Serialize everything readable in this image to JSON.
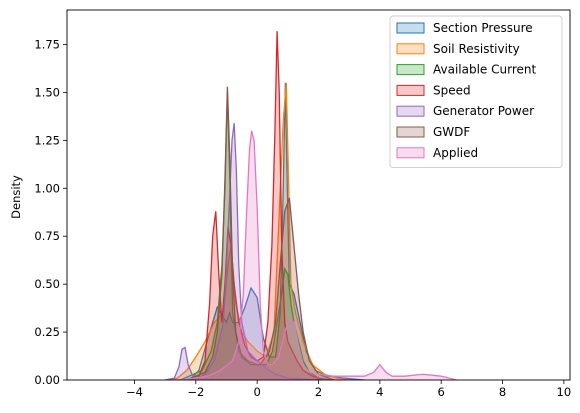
{
  "chart_data": {
    "type": "area",
    "title": "",
    "xlabel": "",
    "ylabel": "Density",
    "xlim": [
      -6.2,
      10.2
    ],
    "ylim": [
      0,
      1.93
    ],
    "xticks": [
      -4,
      -2,
      0,
      2,
      4,
      6,
      8,
      10
    ],
    "xtick_labels": [
      "−4",
      "−2",
      "0",
      "2",
      "4",
      "6",
      "8",
      "10"
    ],
    "yticks": [
      0.0,
      0.25,
      0.5,
      0.75,
      1.0,
      1.25,
      1.5,
      1.75
    ],
    "ytick_labels": [
      "0.00",
      "0.25",
      "0.50",
      "0.75",
      "1.00",
      "1.25",
      "1.50",
      "1.75"
    ],
    "grid": false,
    "legend_position": "top-right",
    "series": [
      {
        "name": "Section Pressure",
        "color": "#1f77b4",
        "x": [
          -3.0,
          -2.2,
          -1.9,
          -1.6,
          -1.3,
          -1.0,
          -0.9,
          -0.8,
          -0.6,
          -0.4,
          -0.2,
          0.0,
          0.2,
          0.4,
          0.6,
          0.75,
          0.85,
          0.92,
          0.97,
          1.05,
          1.2,
          1.4,
          1.6,
          1.9,
          2.3,
          2.8,
          3.5
        ],
        "y": [
          0.0,
          0.0,
          0.05,
          0.22,
          0.38,
          0.3,
          0.35,
          0.3,
          0.3,
          0.38,
          0.48,
          0.43,
          0.22,
          0.12,
          0.12,
          0.35,
          1.0,
          1.55,
          1.1,
          0.5,
          0.45,
          0.3,
          0.15,
          0.05,
          0.02,
          0.01,
          0.0
        ]
      },
      {
        "name": "Soil Resistivity",
        "color": "#ff7f0e",
        "x": [
          -3.0,
          -2.6,
          -2.3,
          -2.0,
          -1.7,
          -1.4,
          -1.1,
          -0.95,
          -0.85,
          -0.7,
          -0.5,
          -0.3,
          0.0,
          0.3,
          0.55,
          0.7,
          0.85,
          0.95,
          1.0,
          1.1,
          1.25,
          1.5,
          1.8,
          2.2,
          2.6,
          3.0
        ],
        "y": [
          0.0,
          0.01,
          0.05,
          0.12,
          0.2,
          0.3,
          0.35,
          0.6,
          0.7,
          0.4,
          0.25,
          0.2,
          0.15,
          0.12,
          0.25,
          0.8,
          1.35,
          1.55,
          1.2,
          0.5,
          0.35,
          0.2,
          0.08,
          0.03,
          0.01,
          0.0
        ]
      },
      {
        "name": "Available Current",
        "color": "#2ca02c",
        "x": [
          -2.5,
          -1.8,
          -1.5,
          -1.3,
          -1.15,
          -1.05,
          -0.97,
          -0.9,
          -0.8,
          -0.6,
          -0.3,
          0.0,
          0.3,
          0.5,
          0.65,
          0.8,
          0.9,
          1.0,
          1.1,
          1.2,
          1.35,
          1.5,
          1.7,
          2.0,
          2.5
        ],
        "y": [
          0.0,
          0.05,
          0.15,
          0.3,
          0.6,
          1.0,
          1.5,
          1.1,
          0.35,
          0.15,
          0.1,
          0.08,
          0.08,
          0.15,
          0.3,
          0.45,
          0.58,
          0.55,
          0.4,
          0.3,
          0.2,
          0.1,
          0.04,
          0.01,
          0.0
        ]
      },
      {
        "name": "Speed",
        "color": "#d62728",
        "x": [
          -2.2,
          -1.9,
          -1.7,
          -1.55,
          -1.45,
          -1.35,
          -1.25,
          -1.15,
          -1.05,
          -0.95,
          -0.85,
          -0.75,
          -0.6,
          -0.4,
          -0.2,
          0.0,
          0.2,
          0.35,
          0.48,
          0.58,
          0.65,
          0.72,
          0.8,
          0.9,
          1.0,
          1.15,
          1.3,
          1.5,
          1.8,
          2.2
        ],
        "y": [
          0.0,
          0.02,
          0.1,
          0.4,
          0.75,
          0.88,
          0.55,
          0.3,
          0.5,
          0.8,
          0.7,
          0.5,
          0.3,
          0.18,
          0.12,
          0.1,
          0.12,
          0.3,
          0.7,
          1.3,
          1.82,
          1.5,
          0.7,
          0.3,
          0.2,
          0.15,
          0.1,
          0.05,
          0.02,
          0.0
        ]
      },
      {
        "name": "Generator Power",
        "color": "#9467bd",
        "x": [
          -3.0,
          -2.7,
          -2.55,
          -2.45,
          -2.35,
          -2.25,
          -2.1,
          -1.9,
          -1.7,
          -1.4,
          -1.1,
          -1.0,
          -0.9,
          -0.82,
          -0.75,
          -0.68,
          -0.6,
          -0.5,
          -0.3,
          0.0,
          0.3,
          0.6,
          1.0,
          1.5,
          2.0,
          2.5
        ],
        "y": [
          0.0,
          0.01,
          0.07,
          0.16,
          0.17,
          0.08,
          0.02,
          0.01,
          0.03,
          0.1,
          0.3,
          0.6,
          0.95,
          1.25,
          1.34,
          1.1,
          0.6,
          0.3,
          0.15,
          0.1,
          0.06,
          0.03,
          0.01,
          0.005,
          0.002,
          0.0
        ]
      },
      {
        "name": "GWDF",
        "color": "#8c564b",
        "x": [
          -2.3,
          -1.7,
          -1.45,
          -1.3,
          -1.15,
          -1.05,
          -0.97,
          -0.9,
          -0.8,
          -0.7,
          -0.5,
          -0.2,
          0.1,
          0.4,
          0.6,
          0.75,
          0.9,
          1.05,
          1.2,
          1.35,
          1.5,
          1.7,
          2.0,
          2.5
        ],
        "y": [
          0.0,
          0.04,
          0.12,
          0.25,
          0.55,
          1.05,
          1.53,
          1.2,
          0.55,
          0.25,
          0.12,
          0.08,
          0.08,
          0.15,
          0.3,
          0.6,
          0.88,
          0.95,
          0.7,
          0.45,
          0.25,
          0.1,
          0.03,
          0.0
        ]
      },
      {
        "name": "Applied",
        "color": "#e377c2",
        "x": [
          -2.5,
          -1.6,
          -1.2,
          -0.8,
          -0.6,
          -0.45,
          -0.35,
          -0.25,
          -0.18,
          -0.1,
          0.0,
          0.1,
          0.2,
          0.35,
          0.5,
          0.7,
          0.9,
          1.05,
          1.2,
          1.35,
          1.5,
          1.7,
          2.0,
          2.5,
          3.0,
          3.5,
          3.8,
          4.0,
          4.2,
          4.4,
          4.8,
          5.4,
          6.0,
          6.5
        ],
        "y": [
          0.0,
          0.02,
          0.05,
          0.1,
          0.2,
          0.45,
          0.85,
          1.2,
          1.3,
          1.25,
          0.9,
          0.4,
          0.15,
          0.08,
          0.08,
          0.12,
          0.25,
          0.32,
          0.3,
          0.18,
          0.08,
          0.04,
          0.03,
          0.02,
          0.02,
          0.02,
          0.04,
          0.08,
          0.04,
          0.02,
          0.02,
          0.03,
          0.02,
          0.0
        ]
      }
    ]
  }
}
